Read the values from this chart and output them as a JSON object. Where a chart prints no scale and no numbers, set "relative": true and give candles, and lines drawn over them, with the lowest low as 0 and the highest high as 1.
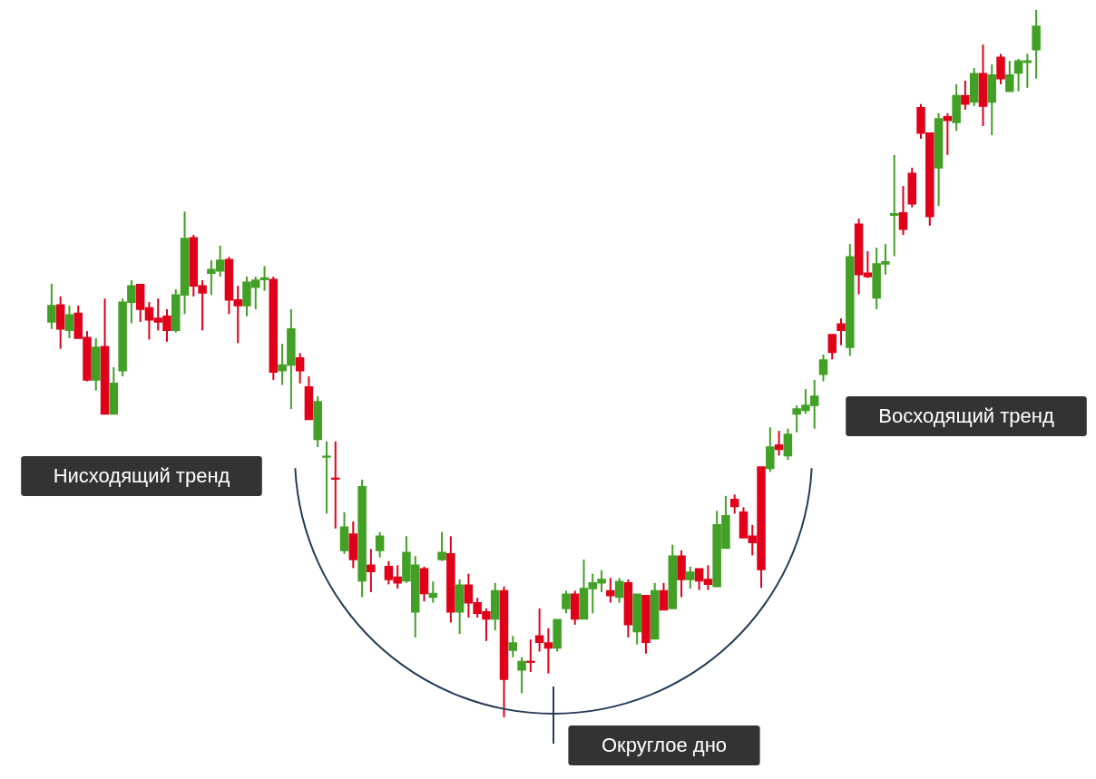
{
  "chart_data": {
    "type": "candlestick",
    "relative": true,
    "categories": [
      null,
      null,
      null,
      null,
      null,
      null,
      null,
      null,
      null,
      null,
      null,
      null,
      null,
      null,
      null,
      null,
      null,
      null,
      null,
      null,
      null,
      null,
      null,
      null,
      null,
      null,
      null,
      null,
      null,
      null,
      null,
      null,
      null,
      null,
      null,
      null,
      null,
      null,
      null,
      null,
      null,
      null,
      null,
      null,
      null,
      null,
      null,
      null,
      null,
      null,
      null,
      null,
      null,
      null,
      null,
      null,
      null,
      null,
      null,
      null,
      null,
      null,
      null,
      null,
      null,
      null,
      null,
      null,
      null,
      null,
      null,
      null,
      null,
      null,
      null,
      null,
      null,
      null,
      null,
      null,
      null,
      null,
      null,
      null,
      null,
      null,
      null,
      null,
      null,
      null,
      null,
      null,
      null,
      null,
      null,
      null,
      null,
      null,
      null,
      null,
      null,
      null,
      null,
      null,
      null,
      null,
      null,
      null,
      null,
      null,
      null,
      null
    ],
    "ohlc": [
      [
        0.559,
        0.613,
        0.549,
        0.582
      ],
      [
        0.583,
        0.595,
        0.521,
        0.549
      ],
      [
        0.547,
        0.582,
        0.536,
        0.569
      ],
      [
        0.571,
        0.582,
        0.536,
        0.536
      ],
      [
        0.537,
        0.546,
        0.475,
        0.477
      ],
      [
        0.477,
        0.536,
        0.462,
        0.523
      ],
      [
        0.524,
        0.592,
        0.429,
        0.429
      ],
      [
        0.429,
        0.495,
        0.429,
        0.472
      ],
      [
        0.49,
        0.592,
        0.482,
        0.587
      ],
      [
        0.587,
        0.618,
        0.557,
        0.61
      ],
      [
        0.612,
        0.612,
        0.559,
        0.577
      ],
      [
        0.579,
        0.587,
        0.534,
        0.562
      ],
      [
        0.564,
        0.592,
        0.547,
        0.559
      ],
      [
        0.567,
        0.577,
        0.531,
        0.547
      ],
      [
        0.547,
        0.605,
        0.544,
        0.597
      ],
      [
        0.597,
        0.715,
        0.57,
        0.677
      ],
      [
        0.678,
        0.682,
        0.595,
        0.61
      ],
      [
        0.61,
        0.618,
        0.547,
        0.6
      ],
      [
        0.628,
        0.646,
        0.597,
        0.633
      ],
      [
        0.631,
        0.667,
        0.623,
        0.646
      ],
      [
        0.647,
        0.651,
        0.57,
        0.59
      ],
      [
        0.59,
        0.61,
        0.529,
        0.582
      ],
      [
        0.582,
        0.623,
        0.567,
        0.615
      ],
      [
        0.608,
        0.623,
        0.577,
        0.618
      ],
      [
        0.619,
        0.638,
        0.603,
        0.621
      ],
      [
        0.619,
        0.623,
        0.477,
        0.488
      ],
      [
        0.49,
        0.528,
        0.47,
        0.498
      ],
      [
        0.498,
        0.577,
        0.436,
        0.549
      ],
      [
        0.508,
        0.515,
        0.472,
        0.49
      ],
      [
        0.467,
        0.482,
        0.421,
        0.421
      ],
      [
        0.393,
        0.454,
        0.382,
        0.446
      ],
      [
        0.368,
        0.39,
        0.288,
        0.369
      ],
      [
        0.338,
        0.39,
        0.267,
        0.337
      ],
      [
        0.236,
        0.29,
        0.231,
        0.269
      ],
      [
        0.259,
        0.277,
        0.211,
        0.223
      ],
      [
        0.193,
        0.336,
        0.17,
        0.326
      ],
      [
        0.215,
        0.238,
        0.177,
        0.206
      ],
      [
        0.236,
        0.262,
        0.226,
        0.256
      ],
      [
        0.213,
        0.221,
        0.188,
        0.195
      ],
      [
        0.198,
        0.215,
        0.182,
        0.19
      ],
      [
        0.193,
        0.256,
        0.19,
        0.233
      ],
      [
        0.149,
        0.228,
        0.113,
        0.215
      ],
      [
        0.21,
        0.213,
        0.164,
        0.175
      ],
      [
        0.17,
        0.192,
        0.162,
        0.175
      ],
      [
        0.223,
        0.262,
        0.221,
        0.233
      ],
      [
        0.231,
        0.256,
        0.134,
        0.149
      ],
      [
        0.149,
        0.195,
        0.118,
        0.187
      ],
      [
        0.187,
        0.203,
        0.141,
        0.162
      ],
      [
        0.162,
        0.169,
        0.141,
        0.147
      ],
      [
        0.149,
        0.154,
        0.108,
        0.139
      ],
      [
        0.139,
        0.19,
        0.123,
        0.179
      ],
      [
        0.179,
        0.185,
        0.0,
        0.054
      ],
      [
        0.095,
        0.115,
        0.085,
        0.105
      ],
      [
        0.067,
        0.085,
        0.034,
        0.079
      ],
      [
        0.079,
        0.11,
        0.064,
        0.078
      ],
      [
        0.115,
        0.154,
        0.093,
        0.106
      ],
      [
        0.105,
        0.126,
        0.062,
        0.098
      ],
      [
        0.098,
        0.138,
        0.093,
        0.138
      ],
      [
        0.154,
        0.179,
        0.147,
        0.174
      ],
      [
        0.174,
        0.179,
        0.131,
        0.139
      ],
      [
        0.139,
        0.223,
        0.139,
        0.182
      ],
      [
        0.182,
        0.203,
        0.147,
        0.19
      ],
      [
        0.19,
        0.208,
        0.177,
        0.195
      ],
      [
        0.179,
        0.197,
        0.162,
        0.172
      ],
      [
        0.17,
        0.197,
        0.162,
        0.192
      ],
      [
        0.19,
        0.195,
        0.113,
        0.131
      ],
      [
        0.121,
        0.174,
        0.103,
        0.174
      ],
      [
        0.172,
        0.172,
        0.09,
        0.106
      ],
      [
        0.111,
        0.19,
        0.111,
        0.179
      ],
      [
        0.179,
        0.19,
        0.152,
        0.152
      ],
      [
        0.154,
        0.244,
        0.154,
        0.228
      ],
      [
        0.228,
        0.236,
        0.17,
        0.195
      ],
      [
        0.195,
        0.213,
        0.182,
        0.205
      ],
      [
        0.21,
        0.21,
        0.18,
        0.193
      ],
      [
        0.195,
        0.215,
        0.18,
        0.188
      ],
      [
        0.185,
        0.292,
        0.185,
        0.272
      ],
      [
        0.239,
        0.313,
        0.239,
        0.285
      ],
      [
        0.308,
        0.315,
        0.288,
        0.298
      ],
      [
        0.29,
        0.297,
        0.254,
        0.254
      ],
      [
        0.256,
        0.272,
        0.229,
        0.247
      ],
      [
        0.354,
        0.354,
        0.183,
        0.209
      ],
      [
        0.352,
        0.41,
        0.347,
        0.382
      ],
      [
        0.385,
        0.405,
        0.37,
        0.379
      ],
      [
        0.37,
        0.408,
        0.364,
        0.4
      ],
      [
        0.429,
        0.441,
        0.403,
        0.436
      ],
      [
        0.434,
        0.464,
        0.429,
        0.441
      ],
      [
        0.441,
        0.477,
        0.408,
        0.454
      ],
      [
        0.485,
        0.513,
        0.475,
        0.505
      ],
      [
        0.541,
        0.541,
        0.506,
        0.516
      ],
      [
        0.556,
        0.564,
        0.526,
        0.547
      ],
      [
        0.523,
        0.669,
        0.511,
        0.651
      ],
      [
        0.697,
        0.705,
        0.598,
        0.626
      ],
      [
        0.628,
        0.659,
        0.621,
        0.623
      ],
      [
        0.593,
        0.664,
        0.577,
        0.641
      ],
      [
        0.641,
        0.669,
        0.626,
        0.644
      ],
      [
        0.71,
        0.795,
        0.652,
        0.712
      ],
      [
        0.713,
        0.751,
        0.682,
        0.69
      ],
      [
        0.769,
        0.777,
        0.721,
        0.726
      ],
      [
        0.862,
        0.867,
        0.818,
        0.826
      ],
      [
        0.826,
        0.826,
        0.695,
        0.708
      ],
      [
        0.777,
        0.854,
        0.723,
        0.846
      ],
      [
        0.849,
        0.854,
        0.795,
        0.844
      ],
      [
        0.841,
        0.895,
        0.829,
        0.879
      ],
      [
        0.879,
        0.9,
        0.859,
        0.867
      ],
      [
        0.87,
        0.918,
        0.864,
        0.91
      ],
      [
        0.91,
        0.951,
        0.836,
        0.864
      ],
      [
        0.87,
        0.923,
        0.823,
        0.908
      ],
      [
        0.933,
        0.938,
        0.895,
        0.903
      ],
      [
        0.885,
        0.928,
        0.885,
        0.908
      ],
      [
        0.911,
        0.931,
        0.885,
        0.928
      ],
      [
        0.926,
        0.938,
        0.89,
        0.928
      ],
      [
        0.944,
        1.0,
        0.903,
        0.977
      ]
    ],
    "colors": [
      "#41a025",
      "#e0001a",
      "#41a025",
      "#e0001a",
      "#e0001a",
      "#41a025",
      "#e0001a",
      "#41a025",
      "#41a025",
      "#41a025",
      "#e0001a",
      "#e0001a",
      "#e0001a",
      "#e0001a",
      "#41a025",
      "#41a025",
      "#e0001a",
      "#e0001a",
      "#41a025",
      "#41a025",
      "#e0001a",
      "#e0001a",
      "#41a025",
      "#41a025",
      "#41a025",
      "#e0001a",
      "#41a025",
      "#41a025",
      "#e0001a",
      "#e0001a",
      "#41a025",
      "#41a025",
      "#e0001a",
      "#41a025",
      "#e0001a",
      "#41a025",
      "#e0001a",
      "#41a025",
      "#e0001a",
      "#e0001a",
      "#41a025",
      "#41a025",
      "#e0001a",
      "#41a025",
      "#41a025",
      "#e0001a",
      "#41a025",
      "#e0001a",
      "#e0001a",
      "#e0001a",
      "#41a025",
      "#e0001a",
      "#41a025",
      "#41a025",
      "#e0001a",
      "#e0001a",
      "#e0001a",
      "#41a025",
      "#41a025",
      "#e0001a",
      "#41a025",
      "#41a025",
      "#41a025",
      "#e0001a",
      "#41a025",
      "#e0001a",
      "#41a025",
      "#e0001a",
      "#41a025",
      "#e0001a",
      "#41a025",
      "#e0001a",
      "#41a025",
      "#e0001a",
      "#e0001a",
      "#41a025",
      "#41a025",
      "#e0001a",
      "#e0001a",
      "#e0001a",
      "#e0001a",
      "#41a025",
      "#e0001a",
      "#41a025",
      "#41a025",
      "#41a025",
      "#41a025",
      "#41a025",
      "#e0001a",
      "#e0001a",
      "#41a025",
      "#e0001a",
      "#e0001a",
      "#41a025",
      "#41a025",
      "#41a025",
      "#e0001a",
      "#e0001a",
      "#e0001a",
      "#e0001a",
      "#41a025",
      "#e0001a",
      "#41a025",
      "#e0001a",
      "#41a025",
      "#e0001a",
      "#41a025",
      "#e0001a",
      "#41a025",
      "#41a025",
      "#41a025",
      "#41a025"
    ],
    "annotations": [
      "Нисходящий тренд",
      "Восходящий тренд",
      "Округлое дно"
    ]
  }
}
